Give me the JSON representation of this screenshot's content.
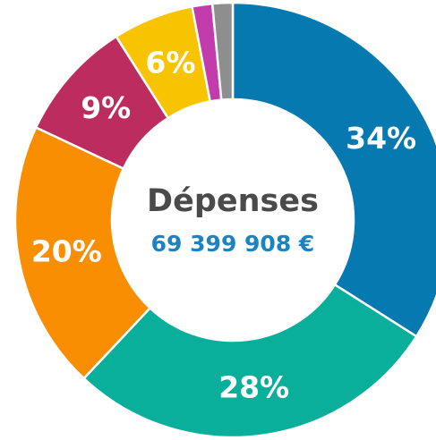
{
  "chart_data": {
    "type": "pie",
    "center_title": "Dépenses",
    "center_value": "69 399 908 €",
    "slices": [
      {
        "value": 34,
        "label": "34%",
        "color": "#0679b0"
      },
      {
        "value": 28,
        "label": "28%",
        "color": "#09af9a"
      },
      {
        "value": 20,
        "label": "20%",
        "color": "#f98e03"
      },
      {
        "value": 9,
        "label": "9%",
        "color": "#bd2c5e"
      },
      {
        "value": 6,
        "label": "6%",
        "color": "#f8c301"
      },
      {
        "value": 1.5,
        "label": "",
        "color": "#c23cac"
      },
      {
        "value": 1.5,
        "label": "",
        "color": "#8e8e8e"
      }
    ]
  }
}
